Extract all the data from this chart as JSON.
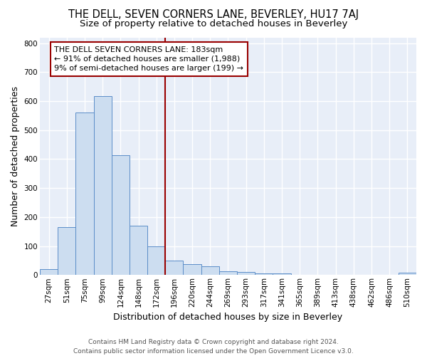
{
  "title": "THE DELL, SEVEN CORNERS LANE, BEVERLEY, HU17 7AJ",
  "subtitle": "Size of property relative to detached houses in Beverley",
  "xlabel": "Distribution of detached houses by size in Beverley",
  "ylabel": "Number of detached properties",
  "footer_line1": "Contains HM Land Registry data © Crown copyright and database right 2024.",
  "footer_line2": "Contains public sector information licensed under the Open Government Licence v3.0.",
  "categories": [
    "27sqm",
    "51sqm",
    "75sqm",
    "99sqm",
    "124sqm",
    "148sqm",
    "172sqm",
    "196sqm",
    "220sqm",
    "244sqm",
    "269sqm",
    "293sqm",
    "317sqm",
    "341sqm",
    "365sqm",
    "389sqm",
    "413sqm",
    "438sqm",
    "462sqm",
    "486sqm",
    "510sqm"
  ],
  "values": [
    20,
    165,
    560,
    618,
    413,
    170,
    100,
    51,
    38,
    30,
    13,
    10,
    5,
    5,
    0,
    0,
    0,
    0,
    0,
    0,
    7
  ],
  "bar_color": "#ccddf0",
  "bar_edge_color": "#5b8dc8",
  "vline_color": "#990000",
  "annotation_title": "THE DELL SEVEN CORNERS LANE: 183sqm",
  "annotation_line1": "← 91% of detached houses are smaller (1,988)",
  "annotation_line2": "9% of semi-detached houses are larger (199) →",
  "ylim": [
    0,
    820
  ],
  "yticks": [
    0,
    100,
    200,
    300,
    400,
    500,
    600,
    700,
    800
  ],
  "plot_bg_color": "#e8eef8",
  "fig_bg_color": "#ffffff",
  "grid_color": "#ffffff",
  "title_fontsize": 10.5,
  "subtitle_fontsize": 9.5,
  "axis_label_fontsize": 9,
  "tick_fontsize": 7.5,
  "annotation_fontsize": 8,
  "footer_fontsize": 6.5,
  "vline_pos": 6.5
}
